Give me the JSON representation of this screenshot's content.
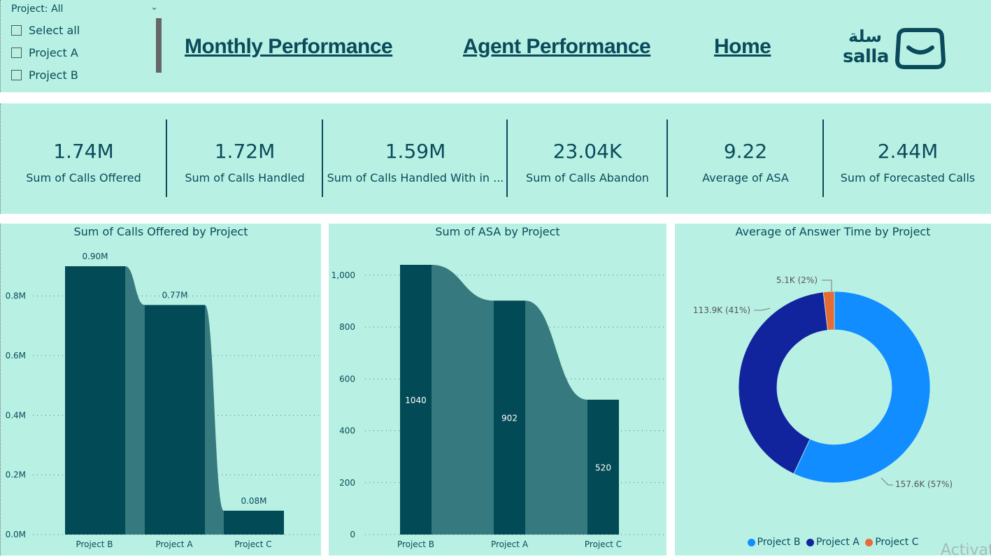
{
  "slicer": {
    "header": "Project: All",
    "items": [
      {
        "label": "Select all",
        "checked": false
      },
      {
        "label": "Project A",
        "checked": false
      },
      {
        "label": "Project B",
        "checked": false
      }
    ]
  },
  "nav": {
    "monthly": "Monthly Performance",
    "agent": "Agent Performance",
    "home": "Home"
  },
  "logo": {
    "arabic": "سلة",
    "english": "salla"
  },
  "kpis": [
    {
      "value": "1.74M",
      "label": "Sum of Calls Offered"
    },
    {
      "value": "1.72M",
      "label": "Sum of Calls Handled"
    },
    {
      "value": "1.59M",
      "label": "Sum of Calls Handled With in ..."
    },
    {
      "value": "23.04K",
      "label": "Sum of Calls Abandon"
    },
    {
      "value": "9.22",
      "label": "Average of ASA"
    },
    {
      "value": "2.44M",
      "label": "Sum of Forecasted Calls"
    }
  ],
  "colors": {
    "bar": "#024a55",
    "ribbon": "#36797e",
    "background": "#b8f1e4",
    "text": "#0b4a5a",
    "projectB": "#118dff",
    "projectA": "#12239e",
    "projectC": "#e66c37"
  },
  "chart_data": [
    {
      "type": "bar",
      "title": "Sum of Calls Offered by Project",
      "categories": [
        "Project B",
        "Project A",
        "Project C"
      ],
      "values": [
        0.9,
        0.77,
        0.08
      ],
      "data_labels": [
        "0.90M",
        "0.77M",
        "0.08M"
      ],
      "ylim": [
        0,
        0.9
      ],
      "yticks": [
        0,
        0.2,
        0.4,
        0.6,
        0.8
      ],
      "ytick_labels": [
        "0.0M",
        "0.2M",
        "0.4M",
        "0.6M",
        "0.8M"
      ],
      "xlabel": "",
      "ylabel": "",
      "grid": true,
      "unit": "millions"
    },
    {
      "type": "bar",
      "title": "Sum of ASA by Project",
      "categories": [
        "Project B",
        "Project A",
        "Project C"
      ],
      "values": [
        1040,
        902,
        520
      ],
      "data_labels": [
        "1040",
        "902",
        "520"
      ],
      "ylim": [
        0,
        1040
      ],
      "yticks": [
        0,
        200,
        400,
        600,
        800,
        1000
      ],
      "ytick_labels": [
        "0",
        "200",
        "400",
        "600",
        "800",
        "1,000"
      ],
      "xlabel": "",
      "ylabel": "",
      "grid": true
    },
    {
      "type": "pie",
      "title": "Average of Answer Time by Project",
      "categories": [
        "Project B",
        "Project A",
        "Project C"
      ],
      "values": [
        157.6,
        113.9,
        5.1
      ],
      "data_labels": [
        "157.6K (57%)",
        "113.9K (41%)",
        "5.1K (2%)"
      ],
      "legend": [
        "Project B",
        "Project A",
        "Project C"
      ],
      "legend_position": "bottom-center",
      "donut": true
    }
  ],
  "watermark": "Activat"
}
